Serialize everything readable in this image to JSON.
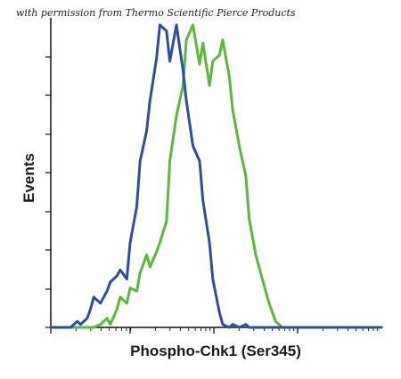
{
  "permission_note": "with permission from Thermo Scientific Pierce Products",
  "chart_data": {
    "type": "line",
    "title": "",
    "xlabel": "Phospho-Chk1 (Ser345)",
    "ylabel": "Events",
    "x_scale": "log",
    "xlim": [
      0,
      100
    ],
    "ylim": [
      0,
      100
    ],
    "x_ticks_labeled": false,
    "y_ticks_labeled": false,
    "grid": false,
    "legend": "none",
    "series": [
      {
        "color": "#2a4ea6",
        "x": [
          0,
          4,
          6,
          8,
          9,
          11,
          12,
          13,
          15,
          17,
          18,
          20,
          21,
          23,
          24,
          26,
          27,
          29,
          30,
          32,
          33,
          35,
          36,
          38,
          40,
          41,
          43,
          45,
          46,
          48,
          49,
          51,
          52,
          54,
          55,
          57,
          59,
          60,
          62,
          64,
          100
        ],
        "y": [
          0,
          0,
          0,
          2,
          1,
          3,
          6,
          10,
          8,
          12,
          15,
          17,
          19,
          16,
          28,
          40,
          55,
          65,
          75,
          89,
          100,
          98,
          88,
          100,
          85,
          75,
          60,
          55,
          42,
          28,
          16,
          5,
          1,
          0,
          1,
          0,
          1,
          0,
          0,
          0,
          0
        ]
      },
      {
        "color": "#5cb83c",
        "x": [
          0,
          13,
          15,
          17,
          18,
          20,
          21,
          23,
          24,
          26,
          27,
          29,
          30,
          32,
          33,
          35,
          36,
          38,
          40,
          41,
          43,
          45,
          46,
          48,
          49,
          51,
          52,
          54,
          55,
          57,
          59,
          60,
          62,
          64,
          66,
          68,
          70,
          100
        ],
        "y": [
          0,
          0,
          1,
          3,
          1,
          6,
          10,
          8,
          13,
          12,
          18,
          24,
          20,
          25,
          28,
          35,
          55,
          70,
          80,
          95,
          100,
          87,
          94,
          80,
          88,
          90,
          95,
          83,
          72,
          60,
          50,
          36,
          24,
          16,
          8,
          2,
          0,
          0
        ]
      }
    ]
  }
}
